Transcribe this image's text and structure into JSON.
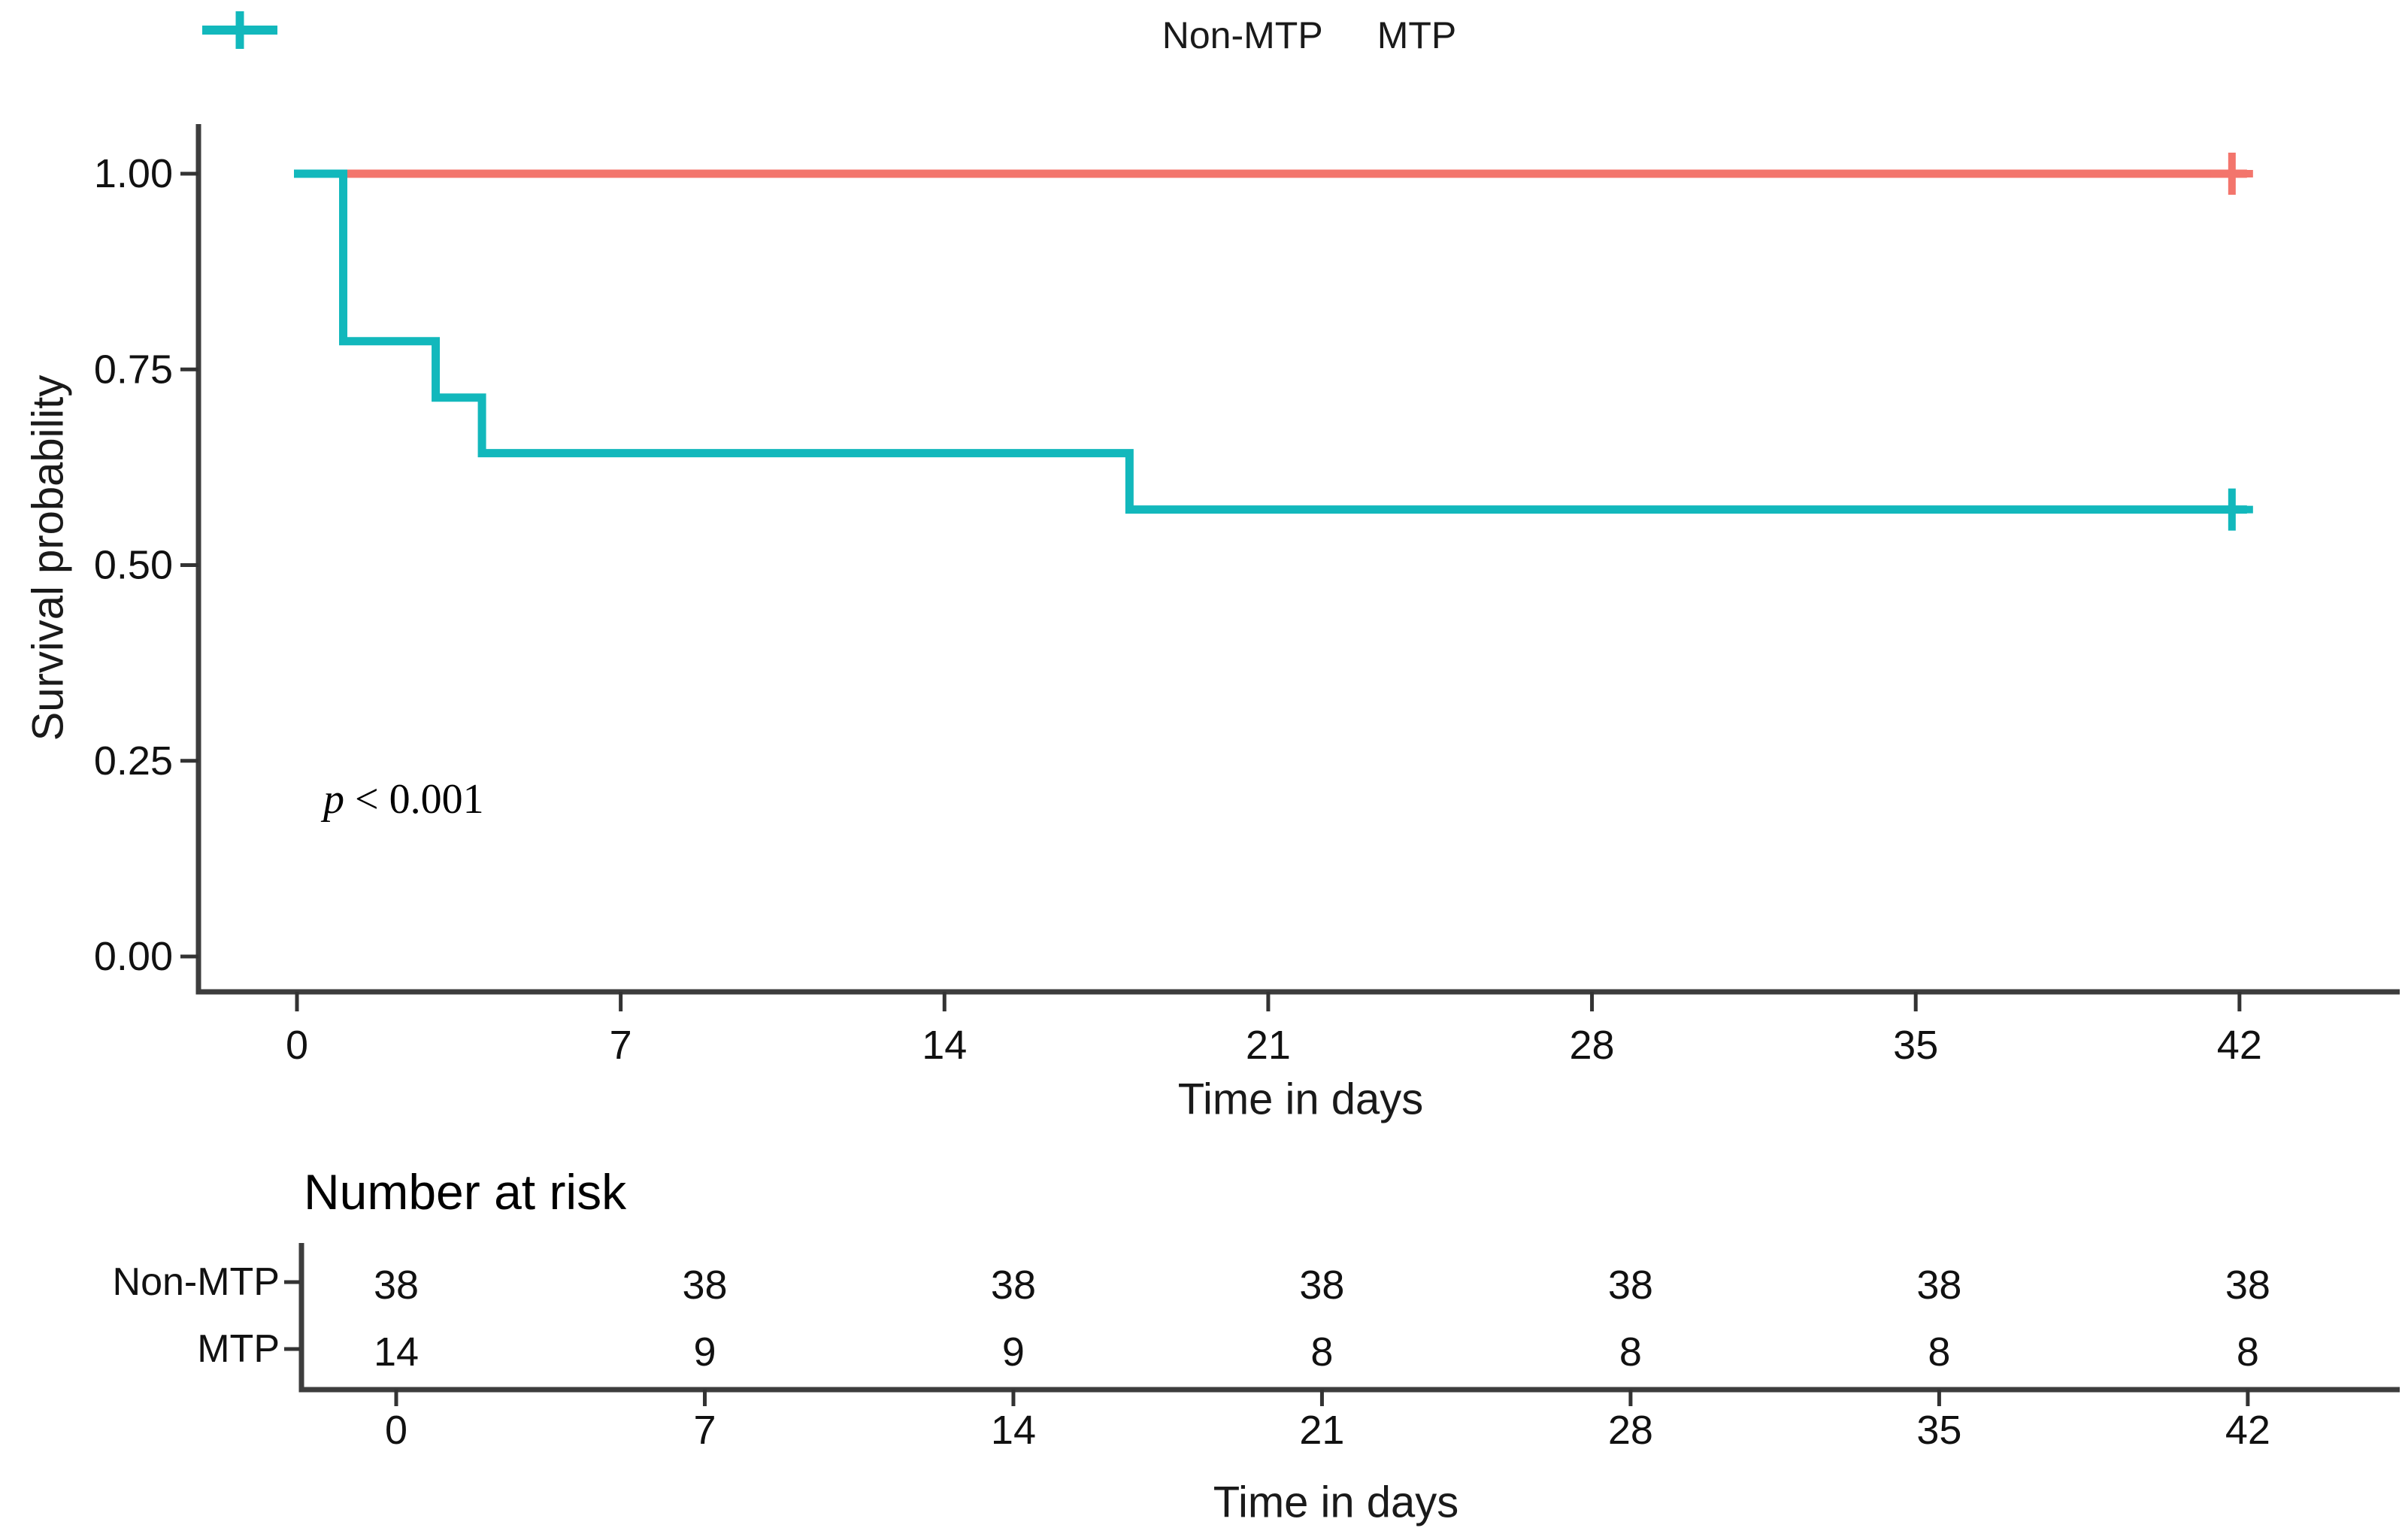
{
  "legend": {
    "items": [
      {
        "label": "Non-MTP",
        "color": "#F3756C"
      },
      {
        "label": "MTP",
        "color": "#12B8BC"
      }
    ]
  },
  "annotation": {
    "p_italic": "p",
    "p_rest": " < 0.001"
  },
  "chart_data": {
    "type": "line",
    "subtype": "kaplan-meier-step",
    "title": "",
    "xlabel": "Time in days",
    "ylabel": "Survival probability",
    "xlim": [
      0,
      42
    ],
    "ylim": [
      0,
      1
    ],
    "x_ticks": [
      0,
      7,
      14,
      21,
      28,
      35,
      42
    ],
    "y_ticks": [
      {
        "v": 0.0,
        "label": "0.00"
      },
      {
        "v": 0.25,
        "label": "0.25"
      },
      {
        "v": 0.5,
        "label": "0.50"
      },
      {
        "v": 0.75,
        "label": "0.75"
      },
      {
        "v": 1.0,
        "label": "1.00"
      }
    ],
    "grid": false,
    "legend_position": "top",
    "p_value": "p < 0.001",
    "series": [
      {
        "name": "Non-MTP",
        "color": "#F3756C",
        "points": [
          [
            0,
            1.0
          ],
          [
            42,
            1.0
          ]
        ],
        "censored": [
          [
            42,
            1.0
          ]
        ]
      },
      {
        "name": "MTP",
        "color": "#12B8BC",
        "points": [
          [
            0,
            1.0
          ],
          [
            1,
            0.786
          ],
          [
            3,
            0.714
          ],
          [
            4,
            0.643
          ],
          [
            18,
            0.571
          ],
          [
            42,
            0.571
          ]
        ],
        "censored": [
          [
            42,
            0.571
          ]
        ]
      }
    ]
  },
  "risk_table": {
    "title": "Number at risk",
    "xlabel": "Time in days",
    "times": [
      0,
      7,
      14,
      21,
      28,
      35,
      42
    ],
    "rows": [
      {
        "label": "Non-MTP",
        "color": "#F3756C",
        "counts": [
          38,
          38,
          38,
          38,
          38,
          38,
          38
        ]
      },
      {
        "label": "MTP",
        "color": "#12B8BC",
        "counts": [
          14,
          9,
          9,
          8,
          8,
          8,
          8
        ]
      }
    ]
  }
}
